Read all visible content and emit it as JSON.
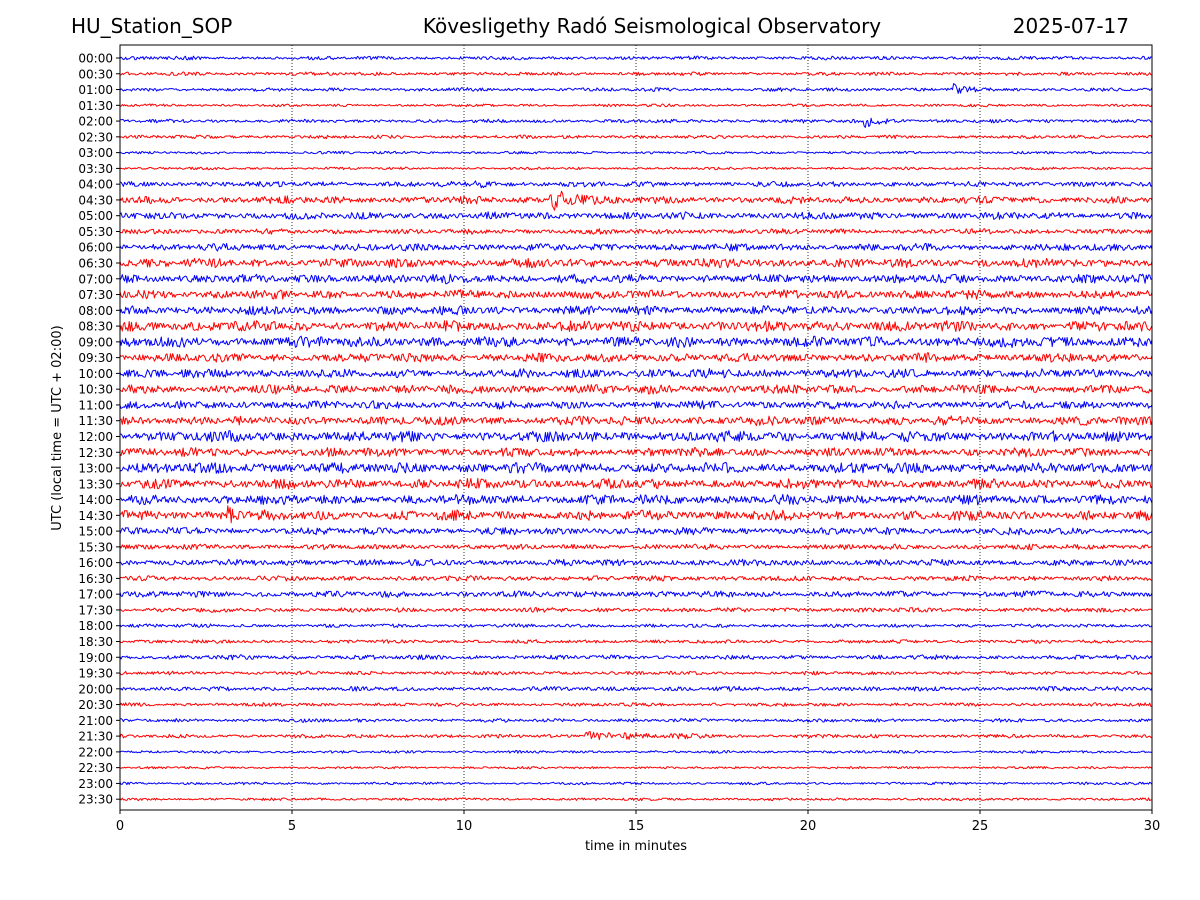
{
  "header": {
    "station": "HU_Station_SOP",
    "observatory": "Kövesligethy Radó Seismological Observatory",
    "date": "2025-07-17"
  },
  "chart_data": {
    "type": "line",
    "title": "Kövesligethy Radó Seismological Observatory",
    "xlabel": "time in minutes",
    "ylabel": "UTC (local time = UTC + 02:00)",
    "xlim": [
      0,
      30
    ],
    "x_ticks": [
      0,
      5,
      10,
      15,
      20,
      25,
      30
    ],
    "grid": "vertical dotted at x ticks",
    "line_colors": [
      "#0000ff",
      "#ff0000"
    ],
    "rows": [
      "00:00",
      "00:30",
      "01:00",
      "01:30",
      "02:00",
      "02:30",
      "03:00",
      "03:30",
      "04:00",
      "04:30",
      "05:00",
      "05:30",
      "06:00",
      "06:30",
      "07:00",
      "07:30",
      "08:00",
      "08:30",
      "09:00",
      "09:30",
      "10:00",
      "10:30",
      "11:00",
      "11:30",
      "12:00",
      "12:30",
      "13:00",
      "13:30",
      "14:00",
      "14:30",
      "15:00",
      "15:30",
      "16:00",
      "16:30",
      "17:00",
      "17:30",
      "18:00",
      "18:30",
      "19:00",
      "19:30",
      "20:00",
      "20:30",
      "21:00",
      "21:30",
      "22:00",
      "22:30",
      "23:00",
      "23:30"
    ],
    "noise_amplitude": [
      2,
      2,
      2,
      1.5,
      2,
      2,
      1.5,
      1.5,
      3,
      4,
      4,
      3,
      4,
      5,
      5,
      5,
      5,
      6,
      6,
      5,
      5,
      5,
      4.5,
      5,
      6,
      5,
      6,
      5.5,
      5.5,
      5.5,
      4,
      3,
      3.5,
      3,
      3.5,
      2.5,
      2,
      2,
      2.5,
      2,
      2.5,
      2,
      2,
      2,
      1.5,
      1.3,
      1.5,
      1.5
    ],
    "events": [
      {
        "row": "01:00",
        "start_min": 24.2,
        "duration_min": 0.8,
        "amplitude": 5
      },
      {
        "row": "02:00",
        "start_min": 21.6,
        "duration_min": 1.4,
        "amplitude": 7
      },
      {
        "row": "04:00",
        "start_min": 10.3,
        "duration_min": 0.7,
        "amplitude": 5
      },
      {
        "row": "04:30",
        "start_min": 12.5,
        "duration_min": 1.6,
        "amplitude": 13
      },
      {
        "row": "14:30",
        "start_min": 3.1,
        "duration_min": 0.4,
        "amplitude": 12
      },
      {
        "row": "21:30",
        "start_min": 13.5,
        "duration_min": 5.0,
        "amplitude": 4
      }
    ]
  }
}
